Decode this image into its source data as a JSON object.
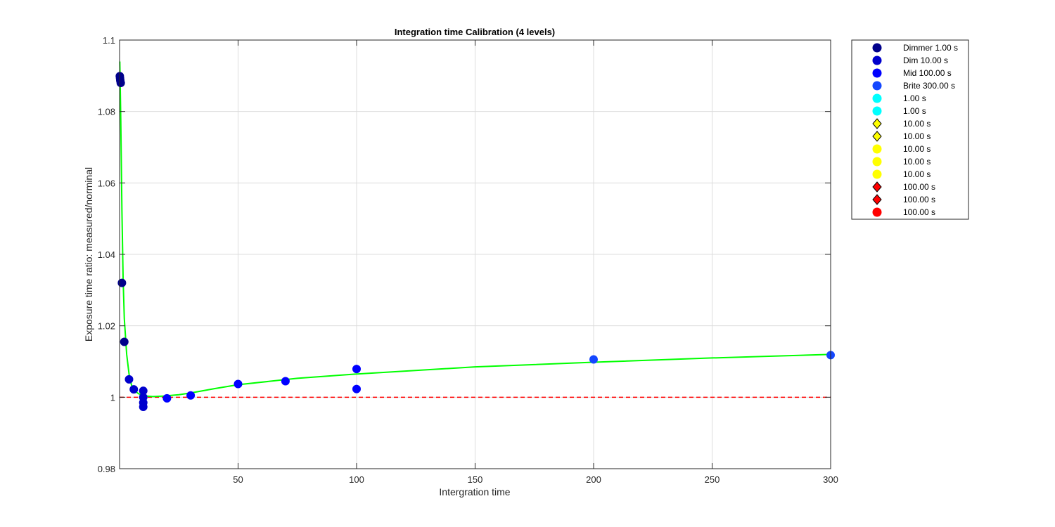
{
  "chart_data": {
    "type": "scatter",
    "title": "Integration time Calibration (4 levels)",
    "xlabel": "Intergration time",
    "ylabel": "Exposure time ratio: measured/norminal",
    "xlim": [
      0,
      300
    ],
    "ylim": [
      0.98,
      1.1
    ],
    "x_ticks": [
      "50",
      "100",
      "150",
      "200",
      "250",
      "300"
    ],
    "y_ticks": [
      "0.98",
      "1",
      "1.02",
      "1.04",
      "1.06",
      "1.08",
      "1.1"
    ],
    "grid": true,
    "legend_position": "outside top-right",
    "series": [
      {
        "name": "Dimmer 1.00 s",
        "marker": "circle",
        "color": "#00008B",
        "points": [
          [
            0.1,
            1.0899
          ],
          [
            0.2,
            1.0893
          ],
          [
            0.3,
            1.0887
          ],
          [
            0.5,
            1.088
          ],
          [
            1,
            1.032
          ],
          [
            2,
            1.0155
          ]
        ]
      },
      {
        "name": "Dim 10.00 s",
        "marker": "circle",
        "color": "#0000CD",
        "points": [
          [
            4,
            1.005
          ],
          [
            6,
            1.0022
          ],
          [
            10,
            1.0018
          ],
          [
            10,
            1.0
          ],
          [
            10,
            0.9985
          ],
          [
            10,
            0.9973
          ]
        ]
      },
      {
        "name": "Mid 100.00 s",
        "marker": "circle",
        "color": "#0000FF",
        "points": [
          [
            20,
            0.9997
          ],
          [
            30,
            1.0005
          ],
          [
            50,
            1.0037
          ],
          [
            70,
            1.0045
          ],
          [
            100,
            1.0079
          ],
          [
            100,
            1.0023
          ]
        ]
      },
      {
        "name": "Brite 300.00 s",
        "marker": "circle",
        "color": "#1447FF",
        "points": [
          [
            200,
            1.0106
          ],
          [
            300,
            1.0118
          ]
        ]
      },
      {
        "name": "1.00 s",
        "marker": "circle",
        "color": "#00FFFF",
        "points": []
      },
      {
        "name": "1.00 s",
        "marker": "circle",
        "color": "#00FFFF",
        "points": []
      },
      {
        "name": "10.00 s",
        "marker": "diamond",
        "color": "#FFFF00",
        "points": []
      },
      {
        "name": "10.00 s",
        "marker": "diamond",
        "color": "#FFFF00",
        "points": []
      },
      {
        "name": "10.00 s",
        "marker": "circle",
        "color": "#FFFF00",
        "points": []
      },
      {
        "name": "10.00 s",
        "marker": "circle",
        "color": "#FFFF00",
        "points": []
      },
      {
        "name": "10.00 s",
        "marker": "circle",
        "color": "#FFFF00",
        "points": []
      },
      {
        "name": "100.00 s",
        "marker": "diamond",
        "color": "#FF0000",
        "points": []
      },
      {
        "name": "100.00 s",
        "marker": "diamond",
        "color": "#FF0000",
        "points": []
      },
      {
        "name": "100.00 s",
        "marker": "circle",
        "color": "#FF0000",
        "points": []
      }
    ],
    "fit_curve": {
      "color": "#00FF00",
      "style": "solid",
      "points": [
        [
          0.1,
          1.094
        ],
        [
          0.5,
          1.078
        ],
        [
          1,
          1.052
        ],
        [
          1.5,
          1.033
        ],
        [
          2,
          1.022
        ],
        [
          3,
          1.012
        ],
        [
          4,
          1.0065
        ],
        [
          5,
          1.0035
        ],
        [
          6,
          1.002
        ],
        [
          8,
          1.001
        ],
        [
          10,
          1.0004
        ],
        [
          14,
          1.0002
        ],
        [
          18,
          1.0003
        ],
        [
          25,
          1.0007
        ],
        [
          30,
          1.0012
        ],
        [
          40,
          1.0024
        ],
        [
          50,
          1.0035
        ],
        [
          75,
          1.0053
        ],
        [
          100,
          1.0065
        ],
        [
          150,
          1.0085
        ],
        [
          200,
          1.0098
        ],
        [
          250,
          1.011
        ],
        [
          300,
          1.012
        ]
      ]
    },
    "reference_line": {
      "y": 1.0,
      "color": "#FF0000",
      "style": "dashed"
    }
  }
}
